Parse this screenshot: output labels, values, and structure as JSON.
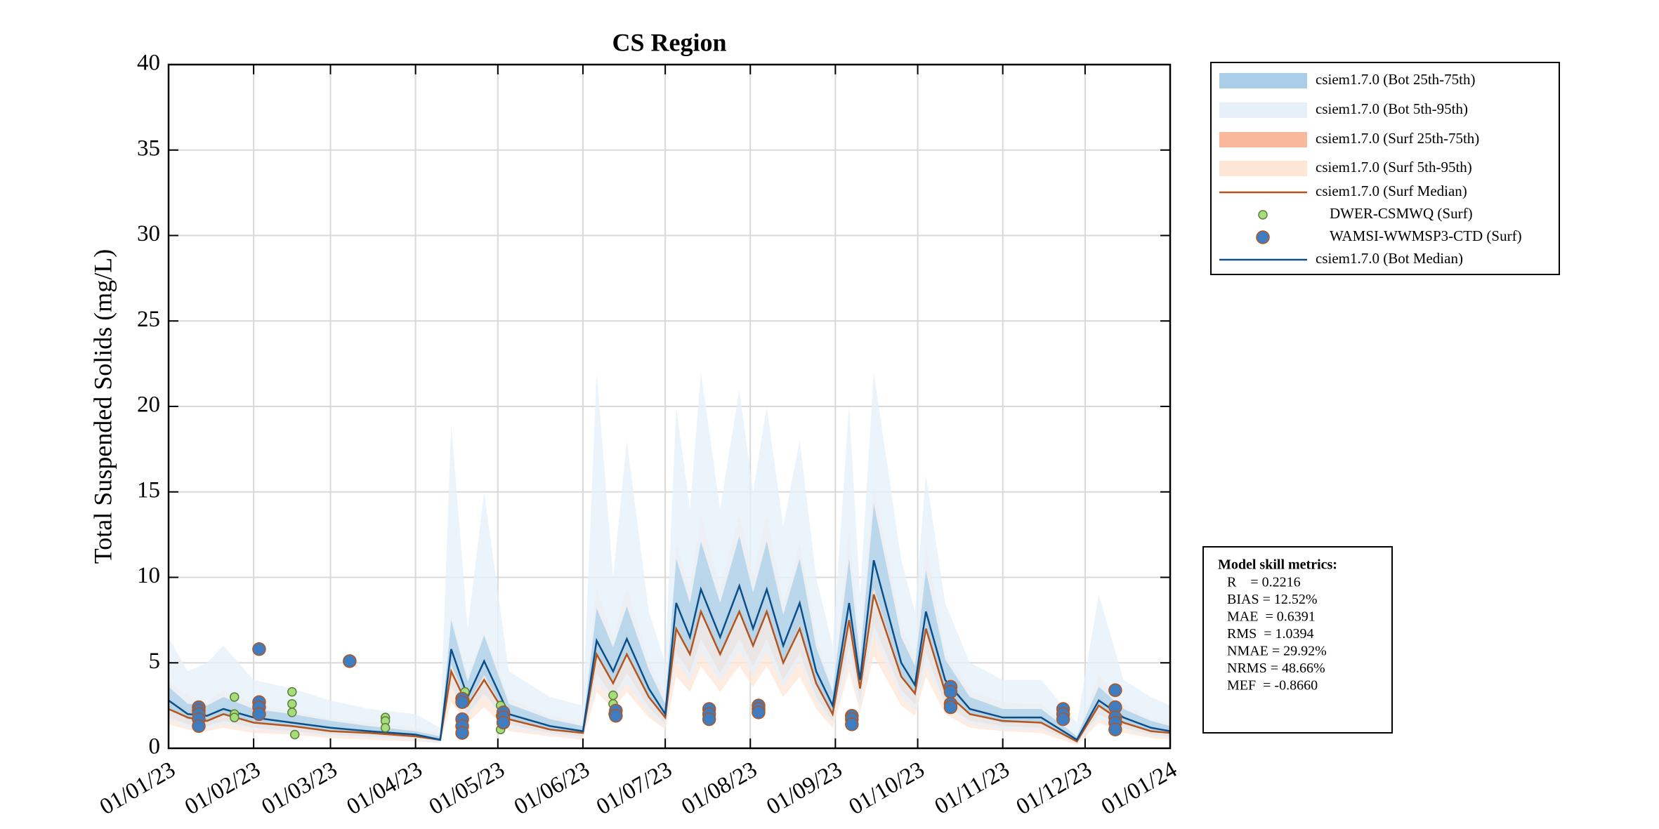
{
  "chart_data": {
    "type": "line",
    "title": "CS Region",
    "y_label": "Total Suspended Solids (mg/L)",
    "xlim": [
      "2023-01-01",
      "2024-01-01"
    ],
    "xticks": [
      {
        "value": "2023-01-01",
        "label": "01/01/23"
      },
      {
        "value": "2023-02-01",
        "label": "01/02/23"
      },
      {
        "value": "2023-03-01",
        "label": "01/03/23"
      },
      {
        "value": "2023-04-01",
        "label": "01/04/23"
      },
      {
        "value": "2023-05-01",
        "label": "01/05/23"
      },
      {
        "value": "2023-06-01",
        "label": "01/06/23"
      },
      {
        "value": "2023-07-01",
        "label": "01/07/23"
      },
      {
        "value": "2023-08-01",
        "label": "01/08/23"
      },
      {
        "value": "2023-09-01",
        "label": "01/09/23"
      },
      {
        "value": "2023-10-01",
        "label": "01/10/23"
      },
      {
        "value": "2023-11-01",
        "label": "01/11/23"
      },
      {
        "value": "2023-12-01",
        "label": "01/12/23"
      },
      {
        "value": "2024-01-01",
        "label": "01/01/24"
      }
    ],
    "ylim": [
      0,
      40
    ],
    "yticks": [
      0,
      5,
      10,
      15,
      20,
      25,
      30,
      35,
      40
    ],
    "grid": true,
    "legend_position": "outside-right-top",
    "x": [
      "2023-01-01",
      "2023-01-08",
      "2023-01-15",
      "2023-01-21",
      "2023-02-01",
      "2023-02-15",
      "2023-03-01",
      "2023-03-15",
      "2023-04-01",
      "2023-04-10",
      "2023-04-14",
      "2023-04-20",
      "2023-04-26",
      "2023-05-05",
      "2023-05-20",
      "2023-06-01",
      "2023-06-06",
      "2023-06-12",
      "2023-06-17",
      "2023-06-25",
      "2023-07-01",
      "2023-07-05",
      "2023-07-10",
      "2023-07-14",
      "2023-07-21",
      "2023-07-28",
      "2023-08-02",
      "2023-08-07",
      "2023-08-13",
      "2023-08-19",
      "2023-08-25",
      "2023-08-31",
      "2023-09-06",
      "2023-09-10",
      "2023-09-15",
      "2023-09-25",
      "2023-09-30",
      "2023-10-04",
      "2023-10-11",
      "2023-10-20",
      "2023-11-01",
      "2023-11-15",
      "2023-11-28",
      "2023-12-06",
      "2023-12-15",
      "2023-12-25",
      "2024-01-01"
    ],
    "series": [
      {
        "name": "csiem1.7.0 (Bot 25th-75th)",
        "type": "band",
        "color": "#a9cfe8",
        "lower": [
          2.4,
          1.7,
          1.6,
          2.0,
          1.5,
          1.3,
          1.0,
          0.9,
          0.7,
          0.4,
          4.9,
          2.6,
          4.3,
          1.7,
          1.1,
          0.9,
          5.4,
          3.8,
          5.4,
          3.0,
          1.7,
          7.2,
          5.5,
          7.9,
          5.5,
          8.1,
          6.0,
          7.9,
          5.1,
          7.2,
          3.8,
          2.1,
          7.2,
          3.4,
          9.4,
          4.3,
          3.1,
          6.8,
          3.4,
          2.0,
          1.5,
          1.5,
          0.4,
          2.4,
          1.5,
          1.0,
          0.9
        ],
        "upper": [
          3.6,
          2.6,
          2.5,
          3.0,
          2.3,
          2.0,
          1.6,
          1.3,
          1.0,
          0.7,
          7.5,
          3.9,
          6.6,
          2.6,
          1.7,
          1.3,
          8.2,
          5.9,
          8.3,
          4.6,
          2.6,
          11.1,
          8.5,
          12.1,
          8.5,
          12.4,
          9.1,
          12.1,
          7.8,
          11.1,
          5.9,
          3.3,
          11.1,
          5.2,
          14.3,
          6.5,
          4.8,
          10.4,
          5.2,
          3.0,
          2.3,
          2.3,
          0.7,
          3.6,
          2.3,
          1.6,
          1.3
        ]
      },
      {
        "name": "csiem1.7.0 (Bot 5th-95th)",
        "type": "band",
        "color": "#e6f0f9",
        "lower": [
          1.7,
          1.2,
          1.1,
          1.4,
          1.1,
          0.9,
          0.7,
          0.6,
          0.5,
          0.3,
          3.5,
          1.8,
          3.1,
          1.2,
          0.8,
          0.6,
          3.8,
          2.7,
          3.8,
          2.1,
          1.2,
          5.1,
          3.9,
          5.6,
          3.9,
          5.7,
          4.2,
          5.6,
          3.6,
          5.1,
          2.7,
          1.5,
          5.1,
          2.4,
          6.6,
          3.0,
          2.2,
          4.8,
          2.4,
          1.4,
          1.1,
          1.1,
          0.3,
          1.7,
          1.1,
          0.7,
          0.6
        ],
        "upper": [
          6.5,
          4.5,
          5.0,
          6.0,
          4.0,
          3.5,
          2.8,
          2.3,
          2.0,
          1.2,
          19.0,
          7.0,
          15.0,
          4.5,
          3.0,
          2.5,
          22.0,
          10.0,
          18.0,
          8.0,
          5.0,
          20.0,
          14.0,
          22.0,
          14.0,
          21.0,
          15.0,
          20.0,
          13.0,
          18.0,
          10.0,
          6.0,
          20.0,
          9.0,
          22.0,
          11.0,
          8.0,
          16.0,
          8.5,
          5.0,
          4.0,
          4.0,
          1.5,
          9.0,
          4.0,
          3.0,
          2.5
        ]
      },
      {
        "name": "csiem1.7.0 (Surf 25th-75th)",
        "type": "band",
        "color": "#f9b89a",
        "lower": [
          1.8,
          1.4,
          1.3,
          1.6,
          1.2,
          1.0,
          0.8,
          0.7,
          0.6,
          0.4,
          3.6,
          2.0,
          3.2,
          1.4,
          0.9,
          0.7,
          4.4,
          3.0,
          4.4,
          2.4,
          1.4,
          5.6,
          4.4,
          6.4,
          4.4,
          6.4,
          4.8,
          6.4,
          4.0,
          5.6,
          3.0,
          1.6,
          6.0,
          2.8,
          7.2,
          3.4,
          2.6,
          5.6,
          2.6,
          1.6,
          1.3,
          1.2,
          0.3,
          2.0,
          1.2,
          0.8,
          0.7
        ],
        "upper": [
          2.9,
          2.3,
          2.0,
          2.5,
          1.9,
          1.6,
          1.3,
          1.1,
          0.9,
          0.6,
          5.6,
          3.1,
          5.0,
          2.1,
          1.4,
          1.1,
          6.9,
          4.8,
          6.9,
          3.8,
          2.3,
          8.8,
          6.9,
          10.0,
          6.9,
          10.0,
          7.5,
          10.0,
          6.3,
          8.8,
          4.8,
          2.5,
          9.4,
          4.4,
          11.3,
          5.3,
          4.0,
          8.8,
          4.1,
          2.5,
          2.0,
          1.9,
          0.5,
          3.1,
          1.9,
          1.3,
          1.1
        ]
      },
      {
        "name": "csiem1.7.0 (Surf 5th-95th)",
        "type": "band",
        "color": "#fde6d6",
        "lower": [
          1.4,
          1.1,
          1.0,
          1.2,
          0.9,
          0.8,
          0.6,
          0.5,
          0.4,
          0.3,
          2.7,
          1.5,
          2.4,
          1.0,
          0.7,
          0.5,
          3.3,
          2.3,
          3.3,
          1.8,
          1.1,
          4.2,
          3.3,
          4.8,
          3.3,
          4.8,
          3.6,
          4.8,
          3.0,
          4.2,
          2.3,
          1.2,
          4.5,
          2.1,
          5.4,
          2.5,
          1.9,
          4.2,
          2.0,
          1.2,
          1.0,
          0.9,
          0.2,
          1.5,
          0.9,
          0.6,
          0.5
        ],
        "upper": [
          3.9,
          3.1,
          2.7,
          3.4,
          2.6,
          2.2,
          1.7,
          1.5,
          1.2,
          0.9,
          7.7,
          4.3,
          6.8,
          2.9,
          1.9,
          1.5,
          9.4,
          6.5,
          9.4,
          5.1,
          3.1,
          11.9,
          9.4,
          13.6,
          9.4,
          13.6,
          10.2,
          13.6,
          8.5,
          11.9,
          6.5,
          3.4,
          12.8,
          6.0,
          15.3,
          7.1,
          5.4,
          11.9,
          5.6,
          3.4,
          2.7,
          2.6,
          0.7,
          4.3,
          2.6,
          1.7,
          1.5
        ]
      },
      {
        "name": "csiem1.7.0 (Surf Median)",
        "type": "line",
        "color": "#b5541c",
        "values": [
          2.3,
          1.8,
          1.6,
          2.0,
          1.5,
          1.3,
          1.0,
          0.9,
          0.7,
          0.5,
          4.5,
          2.5,
          4.0,
          1.7,
          1.1,
          0.9,
          5.5,
          3.8,
          5.5,
          3.0,
          1.8,
          7.0,
          5.5,
          8.0,
          5.5,
          8.0,
          6.0,
          8.0,
          5.0,
          7.0,
          3.8,
          2.0,
          7.5,
          3.5,
          9.0,
          4.2,
          3.2,
          7.0,
          3.3,
          2.0,
          1.6,
          1.5,
          0.4,
          2.5,
          1.5,
          1.0,
          0.9
        ]
      },
      {
        "name": "DWER-CSMWQ (Surf)",
        "type": "scatter",
        "color": "#a6dd7c",
        "edge": "#5e7d35",
        "x": [
          "2023-01-12",
          "2023-01-12",
          "2023-01-25",
          "2023-01-25",
          "2023-01-25",
          "2023-02-15",
          "2023-02-15",
          "2023-02-15",
          "2023-02-16",
          "2023-03-21",
          "2023-03-21",
          "2023-03-21",
          "2023-04-19",
          "2023-04-19",
          "2023-05-02",
          "2023-05-02",
          "2023-05-02",
          "2023-06-12",
          "2023-06-12",
          "2023-06-12"
        ],
        "values": [
          2.3,
          2.0,
          3.0,
          2.0,
          1.8,
          3.3,
          2.6,
          2.1,
          0.8,
          1.8,
          1.6,
          1.2,
          3.3,
          2.8,
          2.5,
          1.9,
          1.1,
          3.1,
          2.6,
          2.0
        ]
      },
      {
        "name": "WAMSI-WWMSP3-CTD (Surf)",
        "type": "scatter",
        "color": "#3f7cc0",
        "edge": "#b5541c",
        "x": [
          "2023-01-12",
          "2023-01-12",
          "2023-01-12",
          "2023-01-12",
          "2023-01-12",
          "2023-02-03",
          "2023-02-03",
          "2023-02-03",
          "2023-02-03",
          "2023-03-08",
          "2023-04-18",
          "2023-04-18",
          "2023-04-18",
          "2023-04-18",
          "2023-04-18",
          "2023-05-03",
          "2023-05-03",
          "2023-05-03",
          "2023-06-13",
          "2023-06-13",
          "2023-07-17",
          "2023-07-17",
          "2023-07-17",
          "2023-08-04",
          "2023-08-04",
          "2023-08-04",
          "2023-09-07",
          "2023-09-07",
          "2023-09-07",
          "2023-10-13",
          "2023-10-13",
          "2023-10-13",
          "2023-10-13",
          "2023-11-23",
          "2023-11-23",
          "2023-11-23",
          "2023-12-12",
          "2023-12-12",
          "2023-12-12",
          "2023-12-12",
          "2023-12-12"
        ],
        "values": [
          2.4,
          2.2,
          2.0,
          1.7,
          1.3,
          5.8,
          2.7,
          2.4,
          2.0,
          5.1,
          2.9,
          2.7,
          1.7,
          1.3,
          0.9,
          2.1,
          1.8,
          1.5,
          2.2,
          1.9,
          2.3,
          2.0,
          1.7,
          2.5,
          2.3,
          2.1,
          1.9,
          1.7,
          1.4,
          3.6,
          3.3,
          2.6,
          2.4,
          2.3,
          2.0,
          1.7,
          3.4,
          2.4,
          1.8,
          1.5,
          1.1
        ]
      },
      {
        "name": "csiem1.7.0 (Bot Median)",
        "type": "line",
        "color": "#0b4f8a",
        "values": [
          2.8,
          2.0,
          1.9,
          2.3,
          1.8,
          1.5,
          1.2,
          1.0,
          0.8,
          0.5,
          5.8,
          3.0,
          5.1,
          2.0,
          1.3,
          1.0,
          6.3,
          4.5,
          6.4,
          3.5,
          2.0,
          8.5,
          6.5,
          9.3,
          6.5,
          9.5,
          7.0,
          9.3,
          6.0,
          8.5,
          4.5,
          2.5,
          8.5,
          4.0,
          11.0,
          5.0,
          3.7,
          8.0,
          4.0,
          2.3,
          1.8,
          1.8,
          0.5,
          2.8,
          1.8,
          1.2,
          1.0
        ]
      }
    ],
    "skill_metrics": {
      "title": "Model skill metrics:",
      "lines": [
        "R    = 0.2216",
        "BIAS = 12.52%",
        "MAE  = 0.6391",
        "RMS  = 1.0394",
        "NMAE = 29.92%",
        "NRMS = 48.66%",
        "MEF  = -0.8660"
      ]
    }
  }
}
